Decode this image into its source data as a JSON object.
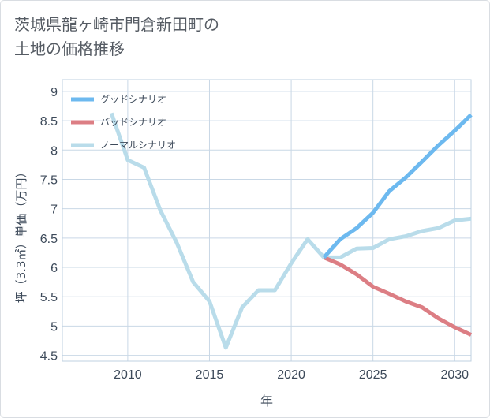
{
  "title_lines": [
    "茨城県龍ヶ崎市門倉新田町の",
    "土地の価格推移"
  ],
  "colors": {
    "good": "#6db9ef",
    "bad": "#dc7e84",
    "normal": "#b9dcea",
    "grid": "#c9d8e6"
  },
  "chart_data": {
    "type": "line",
    "title": "茨城県龍ヶ崎市門倉新田町の土地の価格推移",
    "xlabel": "年",
    "ylabel": "坪（3.3㎡）単価（万円）",
    "xlim": [
      2006,
      2031
    ],
    "ylim": [
      4.4,
      9.2
    ],
    "xticks": [
      2010,
      2015,
      2020,
      2025,
      2030
    ],
    "yticks": [
      4.5,
      5,
      5.5,
      6,
      6.5,
      7,
      7.5,
      8,
      8.5,
      9
    ],
    "ytick_labels": [
      "4.5",
      "5",
      "5.5",
      "6",
      "6.5",
      "7",
      "7.5",
      "8",
      "8.5",
      "9"
    ],
    "legend": [
      "グッドシナリオ",
      "バッドシナリオ",
      "ノーマルシナリオ"
    ],
    "series": [
      {
        "name": "グッドシナリオ",
        "color": "#6db9ef",
        "x": [
          2022,
          2023,
          2024,
          2025,
          2026,
          2027,
          2028,
          2029,
          2030,
          2031
        ],
        "y": [
          6.17,
          6.48,
          6.67,
          6.93,
          7.3,
          7.53,
          7.8,
          8.08,
          8.33,
          8.6
        ]
      },
      {
        "name": "バッドシナリオ",
        "color": "#dc7e84",
        "x": [
          2022,
          2023,
          2024,
          2025,
          2026,
          2027,
          2028,
          2029,
          2030,
          2031
        ],
        "y": [
          6.17,
          6.05,
          5.88,
          5.67,
          5.55,
          5.42,
          5.32,
          5.13,
          4.98,
          4.85
        ]
      },
      {
        "name": "ノーマルシナリオ",
        "color": "#b9dcea",
        "x": [
          2009,
          2010,
          2011,
          2012,
          2013,
          2014,
          2015,
          2016,
          2017,
          2018,
          2019,
          2020,
          2021,
          2022,
          2023,
          2024,
          2025,
          2026,
          2027,
          2028,
          2029,
          2030,
          2031
        ],
        "y": [
          8.63,
          7.83,
          7.7,
          6.97,
          6.42,
          5.75,
          5.42,
          4.63,
          5.32,
          5.61,
          5.61,
          6.07,
          6.48,
          6.17,
          6.17,
          6.32,
          6.33,
          6.48,
          6.53,
          6.62,
          6.67,
          6.8,
          6.83
        ]
      }
    ]
  }
}
